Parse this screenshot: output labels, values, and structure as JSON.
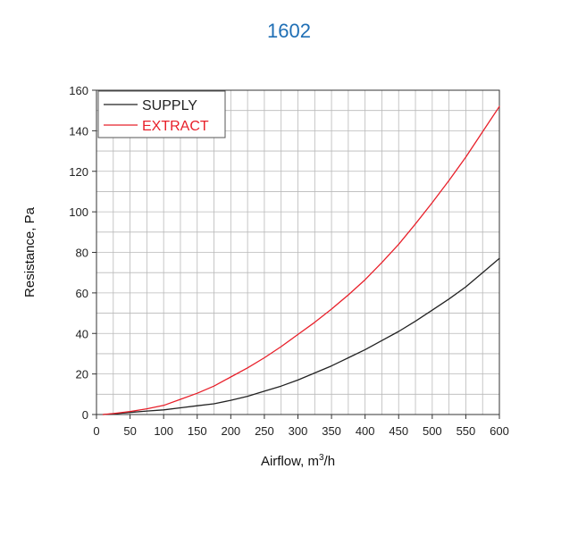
{
  "title": "1602",
  "chart_data": {
    "type": "line",
    "title": "1602",
    "xlabel": "Airflow, m",
    "xlabel_sup": "3",
    "xlabel_suffix": "/h",
    "ylabel": "Resistance, Pa",
    "xlim": [
      0,
      600
    ],
    "ylim": [
      0,
      160
    ],
    "x_ticks": [
      0,
      50,
      100,
      150,
      200,
      250,
      300,
      350,
      400,
      450,
      500,
      550,
      600
    ],
    "y_ticks": [
      0,
      20,
      40,
      60,
      80,
      100,
      120,
      140,
      160
    ],
    "grid": true,
    "legend": "top-left",
    "series": [
      {
        "name": "SUPPLY",
        "color": "#222222",
        "x": [
          10,
          25,
          50,
          75,
          100,
          125,
          150,
          175,
          200,
          225,
          250,
          275,
          300,
          325,
          350,
          375,
          400,
          425,
          450,
          475,
          500,
          525,
          550,
          575,
          600
        ],
        "y": [
          0,
          0.3,
          1,
          1.7,
          2.3,
          3.3,
          4.3,
          5.3,
          7,
          9,
          11.5,
          14,
          17,
          20.5,
          24,
          28,
          32,
          36.5,
          41,
          46,
          51.5,
          57,
          63,
          70,
          77
        ]
      },
      {
        "name": "EXTRACT",
        "color": "#e8202a",
        "x": [
          10,
          25,
          50,
          75,
          100,
          125,
          150,
          175,
          200,
          225,
          250,
          275,
          300,
          325,
          350,
          375,
          400,
          425,
          450,
          475,
          500,
          525,
          550,
          575,
          600
        ],
        "y": [
          0,
          0.5,
          1.5,
          2.8,
          4.5,
          7.5,
          10.5,
          14,
          18.5,
          23,
          28,
          33.5,
          39.5,
          45.5,
          52,
          59,
          66.5,
          75,
          84,
          94,
          104.5,
          115.5,
          127,
          139.5,
          152
        ]
      }
    ]
  }
}
